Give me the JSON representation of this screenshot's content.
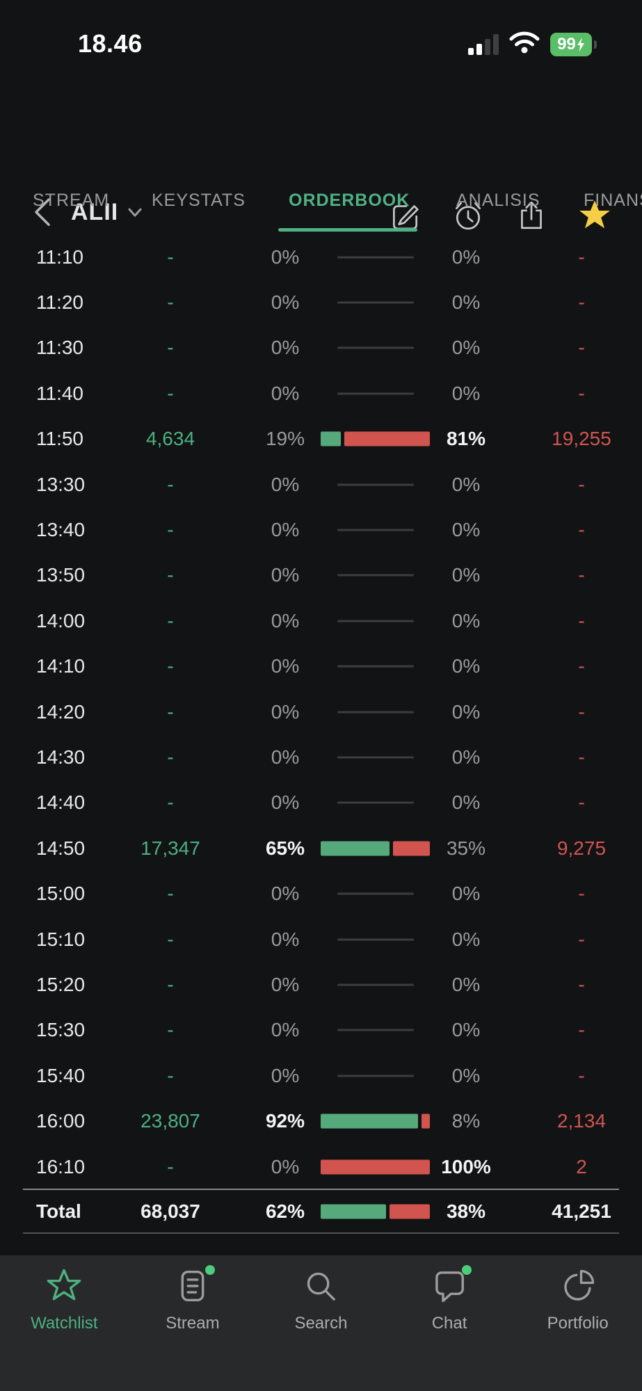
{
  "status_bar": {
    "time": "18.46",
    "battery": "99"
  },
  "header": {
    "title": "ALII"
  },
  "tabs": {
    "items": [
      {
        "label": "STREAM",
        "active": false
      },
      {
        "label": "KEYSTATS",
        "active": false
      },
      {
        "label": "ORDERBOOK",
        "active": true
      },
      {
        "label": "ANALISIS",
        "active": false
      },
      {
        "label": "FINANSIAL",
        "active": false
      }
    ]
  },
  "orderbook": {
    "rows": [
      {
        "time": "11:10",
        "buy_value": "-",
        "buy_pct": "0%",
        "buy_num": 0,
        "buy_bold": false,
        "sell_pct": "0%",
        "sell_num": 0,
        "sell_bold": false,
        "sell_value": "-"
      },
      {
        "time": "11:20",
        "buy_value": "-",
        "buy_pct": "0%",
        "buy_num": 0,
        "buy_bold": false,
        "sell_pct": "0%",
        "sell_num": 0,
        "sell_bold": false,
        "sell_value": "-"
      },
      {
        "time": "11:30",
        "buy_value": "-",
        "buy_pct": "0%",
        "buy_num": 0,
        "buy_bold": false,
        "sell_pct": "0%",
        "sell_num": 0,
        "sell_bold": false,
        "sell_value": "-"
      },
      {
        "time": "11:40",
        "buy_value": "-",
        "buy_pct": "0%",
        "buy_num": 0,
        "buy_bold": false,
        "sell_pct": "0%",
        "sell_num": 0,
        "sell_bold": false,
        "sell_value": "-"
      },
      {
        "time": "11:50",
        "buy_value": "4,634",
        "buy_pct": "19%",
        "buy_num": 19,
        "buy_bold": false,
        "sell_pct": "81%",
        "sell_num": 81,
        "sell_bold": true,
        "sell_value": "19,255"
      },
      {
        "time": "13:30",
        "buy_value": "-",
        "buy_pct": "0%",
        "buy_num": 0,
        "buy_bold": false,
        "sell_pct": "0%",
        "sell_num": 0,
        "sell_bold": false,
        "sell_value": "-"
      },
      {
        "time": "13:40",
        "buy_value": "-",
        "buy_pct": "0%",
        "buy_num": 0,
        "buy_bold": false,
        "sell_pct": "0%",
        "sell_num": 0,
        "sell_bold": false,
        "sell_value": "-"
      },
      {
        "time": "13:50",
        "buy_value": "-",
        "buy_pct": "0%",
        "buy_num": 0,
        "buy_bold": false,
        "sell_pct": "0%",
        "sell_num": 0,
        "sell_bold": false,
        "sell_value": "-"
      },
      {
        "time": "14:00",
        "buy_value": "-",
        "buy_pct": "0%",
        "buy_num": 0,
        "buy_bold": false,
        "sell_pct": "0%",
        "sell_num": 0,
        "sell_bold": false,
        "sell_value": "-"
      },
      {
        "time": "14:10",
        "buy_value": "-",
        "buy_pct": "0%",
        "buy_num": 0,
        "buy_bold": false,
        "sell_pct": "0%",
        "sell_num": 0,
        "sell_bold": false,
        "sell_value": "-"
      },
      {
        "time": "14:20",
        "buy_value": "-",
        "buy_pct": "0%",
        "buy_num": 0,
        "buy_bold": false,
        "sell_pct": "0%",
        "sell_num": 0,
        "sell_bold": false,
        "sell_value": "-"
      },
      {
        "time": "14:30",
        "buy_value": "-",
        "buy_pct": "0%",
        "buy_num": 0,
        "buy_bold": false,
        "sell_pct": "0%",
        "sell_num": 0,
        "sell_bold": false,
        "sell_value": "-"
      },
      {
        "time": "14:40",
        "buy_value": "-",
        "buy_pct": "0%",
        "buy_num": 0,
        "buy_bold": false,
        "sell_pct": "0%",
        "sell_num": 0,
        "sell_bold": false,
        "sell_value": "-"
      },
      {
        "time": "14:50",
        "buy_value": "17,347",
        "buy_pct": "65%",
        "buy_num": 65,
        "buy_bold": true,
        "sell_pct": "35%",
        "sell_num": 35,
        "sell_bold": false,
        "sell_value": "9,275"
      },
      {
        "time": "15:00",
        "buy_value": "-",
        "buy_pct": "0%",
        "buy_num": 0,
        "buy_bold": false,
        "sell_pct": "0%",
        "sell_num": 0,
        "sell_bold": false,
        "sell_value": "-"
      },
      {
        "time": "15:10",
        "buy_value": "-",
        "buy_pct": "0%",
        "buy_num": 0,
        "buy_bold": false,
        "sell_pct": "0%",
        "sell_num": 0,
        "sell_bold": false,
        "sell_value": "-"
      },
      {
        "time": "15:20",
        "buy_value": "-",
        "buy_pct": "0%",
        "buy_num": 0,
        "buy_bold": false,
        "sell_pct": "0%",
        "sell_num": 0,
        "sell_bold": false,
        "sell_value": "-"
      },
      {
        "time": "15:30",
        "buy_value": "-",
        "buy_pct": "0%",
        "buy_num": 0,
        "buy_bold": false,
        "sell_pct": "0%",
        "sell_num": 0,
        "sell_bold": false,
        "sell_value": "-"
      },
      {
        "time": "15:40",
        "buy_value": "-",
        "buy_pct": "0%",
        "buy_num": 0,
        "buy_bold": false,
        "sell_pct": "0%",
        "sell_num": 0,
        "sell_bold": false,
        "sell_value": "-"
      },
      {
        "time": "16:00",
        "buy_value": "23,807",
        "buy_pct": "92%",
        "buy_num": 92,
        "buy_bold": true,
        "sell_pct": "8%",
        "sell_num": 8,
        "sell_bold": false,
        "sell_value": "2,134"
      },
      {
        "time": "16:10",
        "buy_value": "-",
        "buy_pct": "0%",
        "buy_num": 0,
        "buy_bold": false,
        "sell_pct": "100%",
        "sell_num": 100,
        "sell_bold": true,
        "sell_value": "2"
      }
    ],
    "total": {
      "label": "Total",
      "buy_value": "68,037",
      "buy_pct": "62%",
      "buy_num": 62,
      "sell_pct": "38%",
      "sell_num": 38,
      "sell_value": "41,251"
    }
  },
  "nav": {
    "items": [
      {
        "label": "Watchlist",
        "active": true,
        "badge": false
      },
      {
        "label": "Stream",
        "active": false,
        "badge": true
      },
      {
        "label": "Search",
        "active": false,
        "badge": false
      },
      {
        "label": "Chat",
        "active": false,
        "badge": true
      },
      {
        "label": "Portfolio",
        "active": false,
        "badge": false
      }
    ]
  },
  "colors": {
    "green": "#4CB181",
    "green_bar": "#55A97B",
    "green_tab": "#4FB185",
    "red": "#D05551",
    "red_bar": "#D1544F",
    "star_yellow": "#F6CE45",
    "battery_green": "#5ABD68",
    "badge_dot": "#4CCD7C"
  }
}
